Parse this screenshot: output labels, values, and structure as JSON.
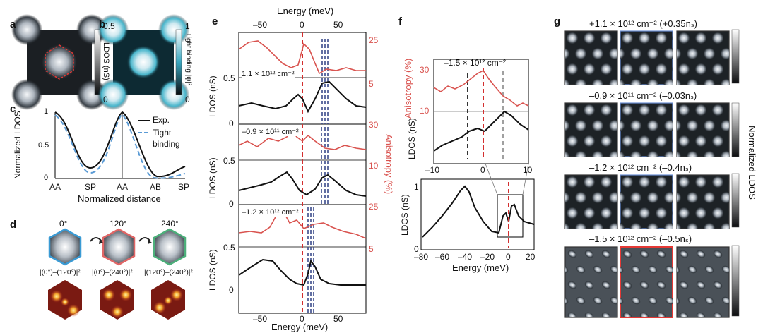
{
  "panels": {
    "a": "a",
    "b": "b",
    "c": "c",
    "d": "d",
    "e": "e",
    "f": "f",
    "g": "g"
  },
  "a": {
    "colorbar_max": "0.5",
    "colorbar_min": "0",
    "colorbar_label": "LDOS (nS)"
  },
  "b": {
    "colorbar_max": "1",
    "colorbar_min": "0",
    "colorbar_label": "Tight binding |ψ|²"
  },
  "c": {
    "ylabel": "Normalized LDOS",
    "xlabel": "Normalized distance",
    "xticks": [
      "AA",
      "SP",
      "AA",
      "AB",
      "SP"
    ],
    "yticks": [
      "1",
      "0.5",
      "0"
    ],
    "legend": [
      "Exp.",
      "Tight binding"
    ]
  },
  "d": {
    "angles": [
      "0°",
      "120°",
      "240°"
    ],
    "diffs": [
      "|(0°)–(120°)|²",
      "|(0°)–(240°)|²",
      "|(120°)–(240°)|²"
    ]
  },
  "e": {
    "top_axis_label": "Energy (meV)",
    "top_ticks": [
      "–50",
      "0",
      "50"
    ],
    "bottom_axis_label": "Energy (meV)",
    "bottom_ticks": [
      "–50",
      "0",
      "50"
    ],
    "ylabel_left": "LDOS (nS)",
    "ylabel_right": "Anisotropy (%)",
    "rows": [
      {
        "density": "1.1 × 10¹² cm⁻²",
        "aniso_ticks": [
          "25",
          "5"
        ],
        "ldos_ticks": [
          "0.5",
          "0"
        ]
      },
      {
        "density": "–0.9 × 10¹¹ cm⁻²",
        "aniso_ticks": [
          "30",
          "10"
        ],
        "ldos_ticks": [
          "0.5",
          "0"
        ]
      },
      {
        "density": "–1.2 × 10¹² cm⁻²",
        "aniso_ticks": [
          "25",
          "5"
        ],
        "ldos_ticks": [
          "0.5",
          "0"
        ]
      }
    ]
  },
  "f": {
    "title": "–1.5 × 10¹² cm⁻²",
    "aniso_label": "Anisotropy (%)",
    "aniso_ticks": [
      "30",
      "10"
    ],
    "ldos_label": "LDOS (nS)",
    "zoom_xticks": [
      "–10",
      "0",
      "10"
    ],
    "full_ylabel": "LDOS (nS)",
    "full_yticks": [
      "1",
      "0"
    ],
    "full_xticks": [
      "–80",
      "–60",
      "–40",
      "–20",
      "0",
      "20"
    ],
    "xlabel": "Energy (meV)"
  },
  "g": {
    "rows": [
      "+1.1 × 10¹² cm⁻² (+0.35nₛ)",
      "–0.9 × 10¹¹ cm⁻² (–0.03nₛ)",
      "–1.2 × 10¹² cm⁻² (–0.4nₛ)",
      "–1.5 × 10¹² cm⁻² (–0.5nₛ)"
    ],
    "colorbar_label": "Normalized LDOS"
  }
}
